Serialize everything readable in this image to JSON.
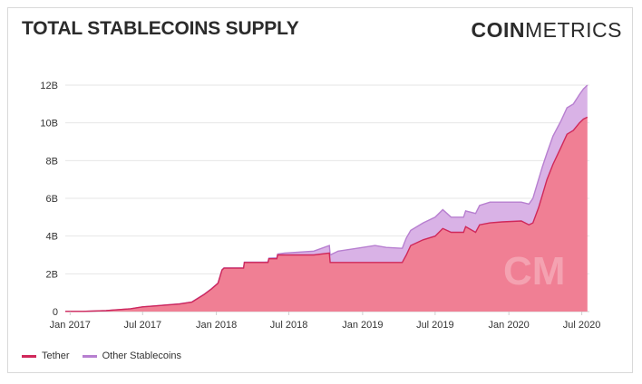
{
  "header": {
    "title": "TOTAL STABLECOINS SUPPLY",
    "brand_bold": "COIN",
    "brand_light": "METRICS"
  },
  "watermark": "CM",
  "colors": {
    "tether_line": "#d0285a",
    "tether_fill": "#f07f94",
    "other_line": "#b77fd0",
    "other_fill": "#d9b2e6",
    "grid": "#e6e6e6"
  },
  "legend": [
    {
      "name": "Tether",
      "color": "#d0285a"
    },
    {
      "name": "Other Stablecoins",
      "color": "#b77fd0"
    }
  ],
  "chart_data": {
    "type": "area",
    "stacked": true,
    "title": "TOTAL STABLECOINS SUPPLY",
    "xlabel": "",
    "ylabel": "",
    "ylim": [
      0,
      12
    ],
    "y_unit": "B",
    "xlim": [
      "2016-12-20",
      "2020-07-20"
    ],
    "grid": true,
    "legend_position": "bottom-left",
    "y_ticks": [
      "0",
      "2B",
      "4B",
      "6B",
      "8B",
      "10B",
      "12B"
    ],
    "x_ticks": [
      {
        "label": "Jan 2017",
        "date": "2017-01-01"
      },
      {
        "label": "Jul 2017",
        "date": "2017-07-01"
      },
      {
        "label": "Jan 2018",
        "date": "2018-01-01"
      },
      {
        "label": "Jul 2018",
        "date": "2018-07-01"
      },
      {
        "label": "Jan 2019",
        "date": "2019-01-01"
      },
      {
        "label": "Jul 2019",
        "date": "2019-07-01"
      },
      {
        "label": "Jan 2020",
        "date": "2020-01-01"
      },
      {
        "label": "Jul 2020",
        "date": "2020-07-01"
      }
    ],
    "series": [
      {
        "name": "Tether",
        "points": [
          [
            "2016-12-20",
            0.01
          ],
          [
            "2017-02-01",
            0.01
          ],
          [
            "2017-04-01",
            0.05
          ],
          [
            "2017-05-01",
            0.1
          ],
          [
            "2017-06-01",
            0.15
          ],
          [
            "2017-07-01",
            0.25
          ],
          [
            "2017-08-01",
            0.3
          ],
          [
            "2017-09-01",
            0.35
          ],
          [
            "2017-10-01",
            0.4
          ],
          [
            "2017-11-01",
            0.5
          ],
          [
            "2017-12-01",
            0.9
          ],
          [
            "2017-12-20",
            1.2
          ],
          [
            "2018-01-05",
            1.5
          ],
          [
            "2018-01-15",
            2.2
          ],
          [
            "2018-01-20",
            2.3
          ],
          [
            "2018-03-10",
            2.3
          ],
          [
            "2018-03-12",
            2.6
          ],
          [
            "2018-05-10",
            2.6
          ],
          [
            "2018-05-12",
            2.8
          ],
          [
            "2018-06-01",
            2.8
          ],
          [
            "2018-06-03",
            3.0
          ],
          [
            "2018-09-01",
            3.0
          ],
          [
            "2018-10-10",
            3.1
          ],
          [
            "2018-10-12",
            2.6
          ],
          [
            "2019-04-10",
            2.6
          ],
          [
            "2019-04-15",
            2.8
          ],
          [
            "2019-04-20",
            3.0
          ],
          [
            "2019-05-01",
            3.5
          ],
          [
            "2019-06-01",
            3.8
          ],
          [
            "2019-07-01",
            4.0
          ],
          [
            "2019-07-20",
            4.4
          ],
          [
            "2019-08-10",
            4.2
          ],
          [
            "2019-09-10",
            4.2
          ],
          [
            "2019-09-15",
            4.5
          ],
          [
            "2019-10-10",
            4.2
          ],
          [
            "2019-10-20",
            4.6
          ],
          [
            "2019-11-15",
            4.7
          ],
          [
            "2019-12-15",
            4.75
          ],
          [
            "2020-02-01",
            4.8
          ],
          [
            "2020-02-20",
            4.6
          ],
          [
            "2020-03-01",
            4.7
          ],
          [
            "2020-03-15",
            5.5
          ],
          [
            "2020-03-25",
            6.2
          ],
          [
            "2020-04-05",
            7.0
          ],
          [
            "2020-04-20",
            7.8
          ],
          [
            "2020-05-10",
            8.7
          ],
          [
            "2020-05-25",
            9.4
          ],
          [
            "2020-06-10",
            9.6
          ],
          [
            "2020-06-25",
            10.0
          ],
          [
            "2020-07-05",
            10.2
          ],
          [
            "2020-07-15",
            10.3
          ]
        ]
      },
      {
        "name": "Other Stablecoins",
        "points": [
          [
            "2016-12-20",
            0.0
          ],
          [
            "2017-06-01",
            0.0
          ],
          [
            "2018-05-01",
            0.02
          ],
          [
            "2018-06-03",
            0.05
          ],
          [
            "2018-06-20",
            0.1
          ],
          [
            "2018-09-01",
            0.2
          ],
          [
            "2018-10-10",
            0.4
          ],
          [
            "2018-10-12",
            0.4
          ],
          [
            "2018-11-01",
            0.6
          ],
          [
            "2018-12-01",
            0.7
          ],
          [
            "2019-01-01",
            0.8
          ],
          [
            "2019-02-01",
            0.9
          ],
          [
            "2019-03-01",
            0.8
          ],
          [
            "2019-04-10",
            0.75
          ],
          [
            "2019-04-20",
            0.9
          ],
          [
            "2019-05-01",
            0.8
          ],
          [
            "2019-06-01",
            0.9
          ],
          [
            "2019-07-01",
            1.0
          ],
          [
            "2019-07-20",
            1.0
          ],
          [
            "2019-08-10",
            0.8
          ],
          [
            "2019-09-10",
            0.8
          ],
          [
            "2019-10-10",
            1.0
          ],
          [
            "2019-11-15",
            1.1
          ],
          [
            "2019-12-15",
            1.05
          ],
          [
            "2020-02-01",
            1.0
          ],
          [
            "2020-02-20",
            1.1
          ],
          [
            "2020-03-01",
            1.3
          ],
          [
            "2020-03-15",
            1.5
          ],
          [
            "2020-03-25",
            1.5
          ],
          [
            "2020-04-05",
            1.4
          ],
          [
            "2020-04-20",
            1.5
          ],
          [
            "2020-05-10",
            1.4
          ],
          [
            "2020-05-25",
            1.4
          ],
          [
            "2020-06-10",
            1.4
          ],
          [
            "2020-06-25",
            1.5
          ],
          [
            "2020-07-05",
            1.6
          ],
          [
            "2020-07-15",
            1.7
          ]
        ]
      }
    ]
  }
}
